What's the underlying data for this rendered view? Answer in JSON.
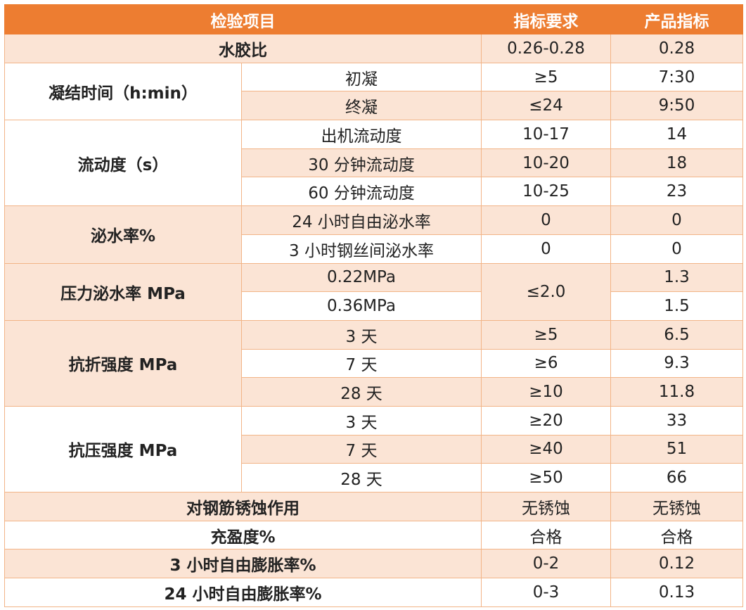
{
  "header": [
    "检验项目",
    "指标要求",
    "产品指标"
  ],
  "water_cement_ratio": {
    "name": "水胶比",
    "req": "0.26-0.28",
    "val": "0.28"
  },
  "setting_time": {
    "name": "凝结时间（h:min）",
    "rows": [
      {
        "sub": "初凝",
        "req": "≥5",
        "val": "7:30"
      },
      {
        "sub": "终凝",
        "req": "≤24",
        "val": "9:50"
      }
    ]
  },
  "fluidity": {
    "name": "流动度（s）",
    "rows": [
      {
        "sub": "出机流动度",
        "req": "10-17",
        "val": "14"
      },
      {
        "sub": "30 分钟流动度",
        "req": "10-20",
        "val": "18"
      },
      {
        "sub": "60 分钟流动度",
        "req": "10-25",
        "val": "23"
      }
    ]
  },
  "bleeding": {
    "name": "泌水率%",
    "rows": [
      {
        "sub": "24 小时自由泌水率",
        "req": "0",
        "val": "0"
      },
      {
        "sub": "3 小时钢丝间泌水率",
        "req": "0",
        "val": "0"
      }
    ]
  },
  "pressure_bleeding": {
    "name": "压力泌水率 MPa",
    "req": "≤2.0",
    "rows": [
      {
        "sub": "0.22MPa",
        "val": "1.3"
      },
      {
        "sub": "0.36MPa",
        "val": "1.5"
      }
    ]
  },
  "flexural": {
    "name": "抗折强度 MPa",
    "rows": [
      {
        "sub": "3 天",
        "req": "≥5",
        "val": "6.5"
      },
      {
        "sub": "7 天",
        "req": "≥6",
        "val": "9.3"
      },
      {
        "sub": "28 天",
        "req": "≥10",
        "val": "11.8"
      }
    ]
  },
  "compressive": {
    "name": "抗压强度 MPa",
    "rows": [
      {
        "sub": "3 天",
        "req": "≥20",
        "val": "33"
      },
      {
        "sub": "7 天",
        "req": "≥40",
        "val": "51"
      },
      {
        "sub": "28 天",
        "req": "≥50",
        "val": "66"
      }
    ]
  },
  "corrosion": {
    "name": "对钢筋锈蚀作用",
    "req": "无锈蚀",
    "val": "无锈蚀"
  },
  "fullness": {
    "name": "充盈度%",
    "req": "合格",
    "val": "合格"
  },
  "expansion_3h": {
    "name": "3 小时自由膨胀率%",
    "req": "0-2",
    "val": "0.12"
  },
  "expansion_24h": {
    "name": "24 小时自由膨胀率%",
    "req": "0-3",
    "val": "0.13"
  }
}
